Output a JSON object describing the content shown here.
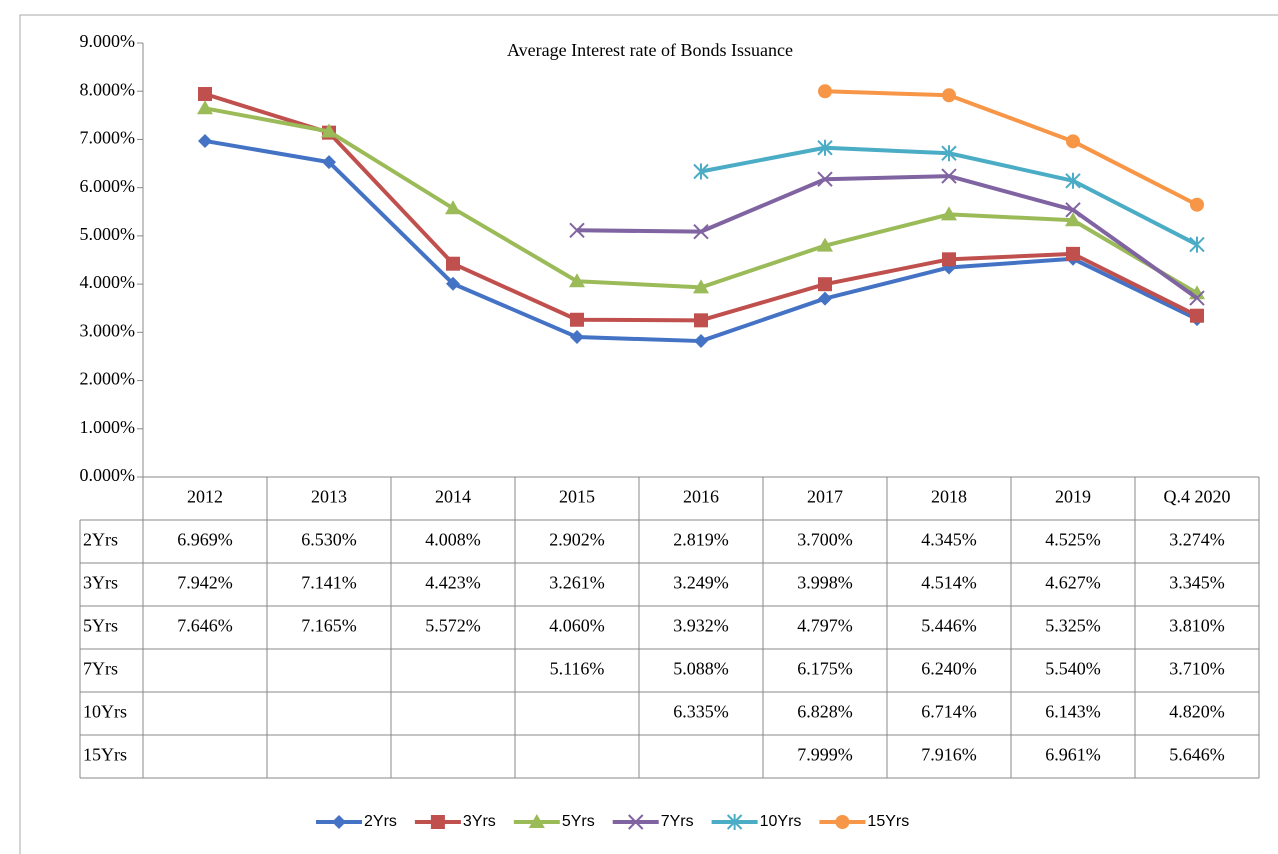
{
  "chart_data": {
    "type": "line",
    "title": "Average Interest rate of Bonds Issuance",
    "categories": [
      "2012",
      "2013",
      "2014",
      "2015",
      "2016",
      "2017",
      "2018",
      "2019",
      "Q.4 2020"
    ],
    "ylim": [
      0,
      9
    ],
    "yticks": [
      {
        "value": 0,
        "label": "0.000%"
      },
      {
        "value": 1,
        "label": "1.000%"
      },
      {
        "value": 2,
        "label": "2.000%"
      },
      {
        "value": 3,
        "label": "3.000%"
      },
      {
        "value": 4,
        "label": "4.000%"
      },
      {
        "value": 5,
        "label": "5.000%"
      },
      {
        "value": 6,
        "label": "6.000%"
      },
      {
        "value": 7,
        "label": "7.000%"
      },
      {
        "value": 8,
        "label": "8.000%"
      },
      {
        "value": 9,
        "label": "9.000%"
      }
    ],
    "legend": "bottom",
    "series": [
      {
        "name": "2Yrs",
        "color": "#4472c4",
        "marker": "diamond",
        "values": [
          6.969,
          6.53,
          4.008,
          2.902,
          2.819,
          3.7,
          4.345,
          4.525,
          3.274
        ],
        "value_labels": [
          "6.969%",
          "6.530%",
          "4.008%",
          "2.902%",
          "2.819%",
          "3.700%",
          "4.345%",
          "4.525%",
          "3.274%"
        ]
      },
      {
        "name": "3Yrs",
        "color": "#c0504d",
        "marker": "square",
        "values": [
          7.942,
          7.141,
          4.423,
          3.261,
          3.249,
          3.998,
          4.514,
          4.627,
          3.345
        ],
        "value_labels": [
          "7.942%",
          "7.141%",
          "4.423%",
          "3.261%",
          "3.249%",
          "3.998%",
          "4.514%",
          "4.627%",
          "3.345%"
        ]
      },
      {
        "name": "5Yrs",
        "color": "#9bbb59",
        "marker": "triangle",
        "values": [
          7.646,
          7.165,
          5.572,
          4.06,
          3.932,
          4.797,
          5.446,
          5.325,
          3.81
        ],
        "value_labels": [
          "7.646%",
          "7.165%",
          "5.572%",
          "4.060%",
          "3.932%",
          "4.797%",
          "5.446%",
          "5.325%",
          "3.810%"
        ]
      },
      {
        "name": "7Yrs",
        "color": "#8064a2",
        "marker": "x",
        "values": [
          null,
          null,
          null,
          5.116,
          5.088,
          6.175,
          6.24,
          5.54,
          3.71
        ],
        "value_labels": [
          null,
          null,
          null,
          "5.116%",
          "5.088%",
          "6.175%",
          "6.240%",
          "5.540%",
          "3.710%"
        ]
      },
      {
        "name": "10Yrs",
        "color": "#4bacc6",
        "marker": "star",
        "values": [
          null,
          null,
          null,
          null,
          6.335,
          6.828,
          6.714,
          6.143,
          4.82
        ],
        "value_labels": [
          null,
          null,
          null,
          null,
          "6.335%",
          "6.828%",
          "6.714%",
          "6.143%",
          "4.820%"
        ]
      },
      {
        "name": "15Yrs",
        "color": "#f79646",
        "marker": "circle",
        "values": [
          null,
          null,
          null,
          null,
          null,
          7.999,
          7.916,
          6.961,
          5.646
        ],
        "value_labels": [
          null,
          null,
          null,
          null,
          null,
          "7.999%",
          "7.916%",
          "6.961%",
          "5.646%"
        ]
      }
    ]
  }
}
